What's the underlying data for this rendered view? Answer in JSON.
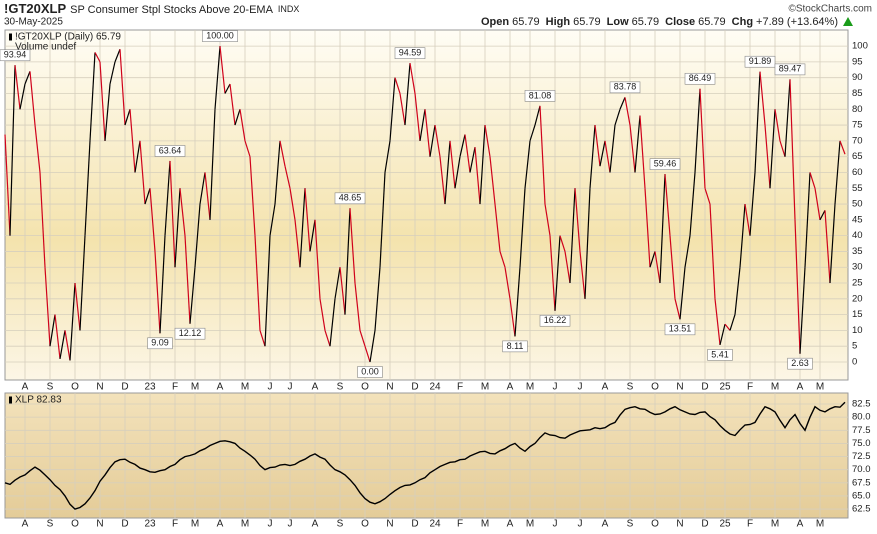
{
  "header": {
    "symbol": "!GT20XLP",
    "name": "SP Consumer Stpl Stocks Above 20-EMA",
    "exchange": "INDX",
    "date": "30-May-2025",
    "credit": "©StockCharts.com",
    "ohlc": [
      {
        "label": "Open",
        "value": 65.79
      },
      {
        "label": "High",
        "value": 65.79
      },
      {
        "label": "Low",
        "value": 65.79
      },
      {
        "label": "Close",
        "value": 65.79
      },
      {
        "label": "Chg",
        "value": "+7.89 (+13.64%)"
      }
    ]
  },
  "chart_data": [
    {
      "type": "line",
      "legend": [
        "!GT20XLP (Daily) 65.79",
        "Volume undef"
      ],
      "categories": [
        null,
        null,
        null,
        null,
        "A",
        null,
        null,
        null,
        null,
        "S",
        null,
        null,
        null,
        null,
        "O",
        null,
        null,
        null,
        null,
        "N",
        null,
        null,
        null,
        null,
        "D",
        null,
        null,
        null,
        null,
        "23",
        null,
        null,
        null,
        null,
        "F",
        null,
        null,
        null,
        "M",
        null,
        null,
        null,
        null,
        "A",
        null,
        null,
        null,
        null,
        "M",
        null,
        null,
        null,
        null,
        "J",
        null,
        null,
        null,
        "J",
        null,
        null,
        null,
        null,
        "A",
        null,
        null,
        null,
        null,
        "S",
        null,
        null,
        null,
        null,
        "O",
        null,
        null,
        null,
        null,
        "N",
        null,
        null,
        null,
        null,
        "D",
        null,
        null,
        null,
        "24",
        null,
        null,
        null,
        null,
        "F",
        null,
        null,
        null,
        null,
        "M",
        null,
        null,
        null,
        null,
        "A",
        null,
        null,
        null,
        "M",
        null,
        null,
        null,
        null,
        "J",
        null,
        null,
        null,
        null,
        "J",
        null,
        null,
        null,
        null,
        "A",
        null,
        null,
        null,
        null,
        "S",
        null,
        null,
        null,
        null,
        "O",
        null,
        null,
        null,
        null,
        "N",
        null,
        null,
        null,
        null,
        "D",
        null,
        null,
        null,
        "25",
        null,
        null,
        null,
        null,
        "F",
        null,
        null,
        null,
        null,
        "M",
        null,
        null,
        null,
        null,
        "A",
        null,
        null,
        null,
        "M",
        null,
        null,
        null,
        null,
        null
      ],
      "series": [
        {
          "name": "!GT20XLP",
          "color_up": "#000000",
          "color_down": "#d0021b",
          "values": [
            72,
            40,
            93.94,
            80,
            88,
            92,
            75,
            60,
            30,
            5,
            15,
            1,
            10,
            0.5,
            25,
            10,
            40,
            70,
            98,
            95,
            70,
            88,
            95,
            99,
            75,
            80,
            60,
            70,
            50,
            55,
            35,
            9.09,
            40,
            63.64,
            30,
            55,
            40,
            12.12,
            30,
            50,
            60,
            45,
            80,
            100,
            85,
            88,
            75,
            80,
            70,
            65,
            40,
            10,
            5,
            40,
            50,
            70,
            62,
            55,
            45,
            30,
            55,
            35,
            45,
            20,
            10,
            5,
            20,
            30,
            15,
            48.65,
            25,
            10,
            5,
            0,
            10,
            30,
            60,
            70,
            90,
            85,
            75,
            94.59,
            85,
            70,
            80,
            65,
            75,
            65,
            50,
            70,
            55,
            65,
            72,
            60,
            68,
            50,
            75,
            65,
            50,
            35,
            30,
            20,
            8.11,
            30,
            55,
            70,
            75,
            81.08,
            50,
            40,
            16.22,
            40,
            35,
            25,
            55,
            35,
            20,
            55,
            75,
            62,
            70,
            60,
            75,
            80,
            83.78,
            75,
            60,
            78,
            55,
            30,
            35,
            25,
            59.46,
            40,
            20,
            13.51,
            30,
            40,
            60,
            86.49,
            55,
            50,
            20,
            5.41,
            12,
            10,
            15,
            30,
            50,
            40,
            60,
            91.89,
            75,
            55,
            80,
            70,
            65,
            89.47,
            45,
            2.63,
            30,
            60,
            55,
            45,
            48,
            25,
            50,
            70,
            65.79
          ],
          "value_labels": [
            null,
            null,
            "93.94",
            null,
            null,
            null,
            null,
            null,
            null,
            null,
            null,
            null,
            null,
            null,
            null,
            null,
            null,
            null,
            null,
            null,
            null,
            null,
            null,
            null,
            null,
            null,
            null,
            null,
            null,
            null,
            null,
            "9.09",
            null,
            "63.64",
            null,
            null,
            null,
            "12.12",
            null,
            null,
            null,
            null,
            null,
            "100.00",
            null,
            null,
            null,
            null,
            null,
            null,
            null,
            null,
            null,
            null,
            null,
            null,
            null,
            null,
            null,
            null,
            null,
            null,
            null,
            null,
            null,
            null,
            null,
            null,
            null,
            "48.65",
            null,
            null,
            null,
            "0.00",
            null,
            null,
            null,
            null,
            null,
            null,
            null,
            "94.59",
            null,
            null,
            null,
            null,
            null,
            null,
            null,
            null,
            null,
            null,
            null,
            null,
            null,
            null,
            null,
            null,
            null,
            null,
            null,
            null,
            "8.11",
            null,
            null,
            null,
            null,
            "81.08",
            null,
            null,
            "16.22",
            null,
            null,
            null,
            null,
            null,
            null,
            null,
            null,
            null,
            null,
            null,
            null,
            null,
            "83.78",
            null,
            null,
            null,
            null,
            null,
            null,
            null,
            "59.46",
            null,
            null,
            "13.51",
            null,
            null,
            null,
            "86.49",
            null,
            null,
            null,
            "5.41",
            null,
            null,
            null,
            null,
            null,
            null,
            null,
            "91.89",
            null,
            null,
            null,
            null,
            null,
            "89.47",
            null,
            "2.63",
            null,
            null,
            null,
            null,
            null,
            null,
            null,
            null,
            null
          ]
        }
      ],
      "ylim": [
        -5.7,
        105.1
      ],
      "yticks": [
        0,
        5,
        10,
        15,
        20,
        25,
        30,
        35,
        40,
        45,
        50,
        55,
        60,
        65,
        70,
        75,
        80,
        85,
        90,
        95,
        100
      ],
      "grid": true
    },
    {
      "type": "line",
      "legend": [
        "XLP 82.83"
      ],
      "categories": [
        null,
        null,
        null,
        null,
        "A",
        null,
        null,
        null,
        null,
        "S",
        null,
        null,
        null,
        null,
        "O",
        null,
        null,
        null,
        null,
        "N",
        null,
        null,
        null,
        null,
        "D",
        null,
        null,
        null,
        null,
        "23",
        null,
        null,
        null,
        null,
        "F",
        null,
        null,
        null,
        "M",
        null,
        null,
        null,
        null,
        "A",
        null,
        null,
        null,
        null,
        "M",
        null,
        null,
        null,
        null,
        "J",
        null,
        null,
        null,
        "J",
        null,
        null,
        null,
        null,
        "A",
        null,
        null,
        null,
        null,
        "S",
        null,
        null,
        null,
        null,
        "O",
        null,
        null,
        null,
        null,
        "N",
        null,
        null,
        null,
        null,
        "D",
        null,
        null,
        null,
        "24",
        null,
        null,
        null,
        null,
        "F",
        null,
        null,
        null,
        null,
        "M",
        null,
        null,
        null,
        null,
        "A",
        null,
        null,
        null,
        "M",
        null,
        null,
        null,
        null,
        "J",
        null,
        null,
        null,
        null,
        "J",
        null,
        null,
        null,
        null,
        "A",
        null,
        null,
        null,
        null,
        "S",
        null,
        null,
        null,
        null,
        "O",
        null,
        null,
        null,
        null,
        "N",
        null,
        null,
        null,
        null,
        "D",
        null,
        null,
        null,
        "25",
        null,
        null,
        null,
        null,
        "F",
        null,
        null,
        null,
        null,
        "M",
        null,
        null,
        null,
        null,
        "A",
        null,
        null,
        null,
        "M",
        null,
        null,
        null,
        null,
        null
      ],
      "series": [
        {
          "name": "XLP",
          "color": "#000000",
          "values": [
            67.5,
            67.2,
            68,
            68.6,
            69,
            69.8,
            70.5,
            69.9,
            69,
            68.1,
            67,
            66.2,
            65,
            63.4,
            62.5,
            62.8,
            63.5,
            64.6,
            66,
            67.8,
            69,
            70.4,
            71.5,
            71.9,
            72,
            71.4,
            71,
            70.3,
            70,
            69.6,
            69.5,
            69.8,
            70,
            70.6,
            71,
            71.9,
            72.5,
            72.7,
            73,
            73.6,
            74,
            74.6,
            75,
            75.4,
            75.5,
            75.3,
            75,
            74.1,
            73.5,
            72.8,
            72,
            70.8,
            70,
            70.4,
            70.5,
            70.9,
            71,
            70.8,
            71,
            71.6,
            72,
            72.6,
            73,
            72.4,
            72,
            70.9,
            70,
            69.6,
            69,
            68.1,
            67,
            65.6,
            64.5,
            63.8,
            63.5,
            63.9,
            64.5,
            65.3,
            66,
            66.6,
            67,
            67.1,
            67.5,
            68.1,
            68.5,
            69.4,
            70,
            70.6,
            71,
            71.4,
            71.5,
            71.9,
            72,
            72.6,
            73,
            73.4,
            73.5,
            73.1,
            73,
            73.6,
            74,
            74.6,
            75,
            74.1,
            73.5,
            74.4,
            75,
            76.1,
            77,
            76.6,
            76.5,
            76.1,
            76,
            76.6,
            77,
            77.4,
            77.5,
            77.6,
            78,
            77.8,
            78,
            78.6,
            79,
            80.4,
            81.5,
            81.8,
            82,
            81.6,
            81.5,
            80.9,
            80.5,
            80.6,
            81,
            81.6,
            82,
            81.4,
            81,
            80.6,
            80.5,
            80.9,
            81,
            80.1,
            79.5,
            78.4,
            77.5,
            76.8,
            76.5,
            77.6,
            78.5,
            78.6,
            79,
            80.6,
            82,
            81.6,
            81,
            79.4,
            78,
            79.5,
            80.5,
            78.8,
            77.5,
            80,
            82,
            81.3,
            81,
            81.6,
            82,
            81.9,
            82.83
          ]
        }
      ],
      "ylim": [
        60.8,
        84.6
      ],
      "yticks": [
        62.5,
        {
          "value": 65,
          "label": "65.0"
        },
        67.5,
        {
          "value": 70,
          "label": "70.0"
        },
        72.5,
        {
          "value": 75,
          "label": "75.0"
        },
        77.5,
        {
          "value": 80,
          "label": "80.0"
        },
        82.5
      ],
      "grid": true
    }
  ]
}
